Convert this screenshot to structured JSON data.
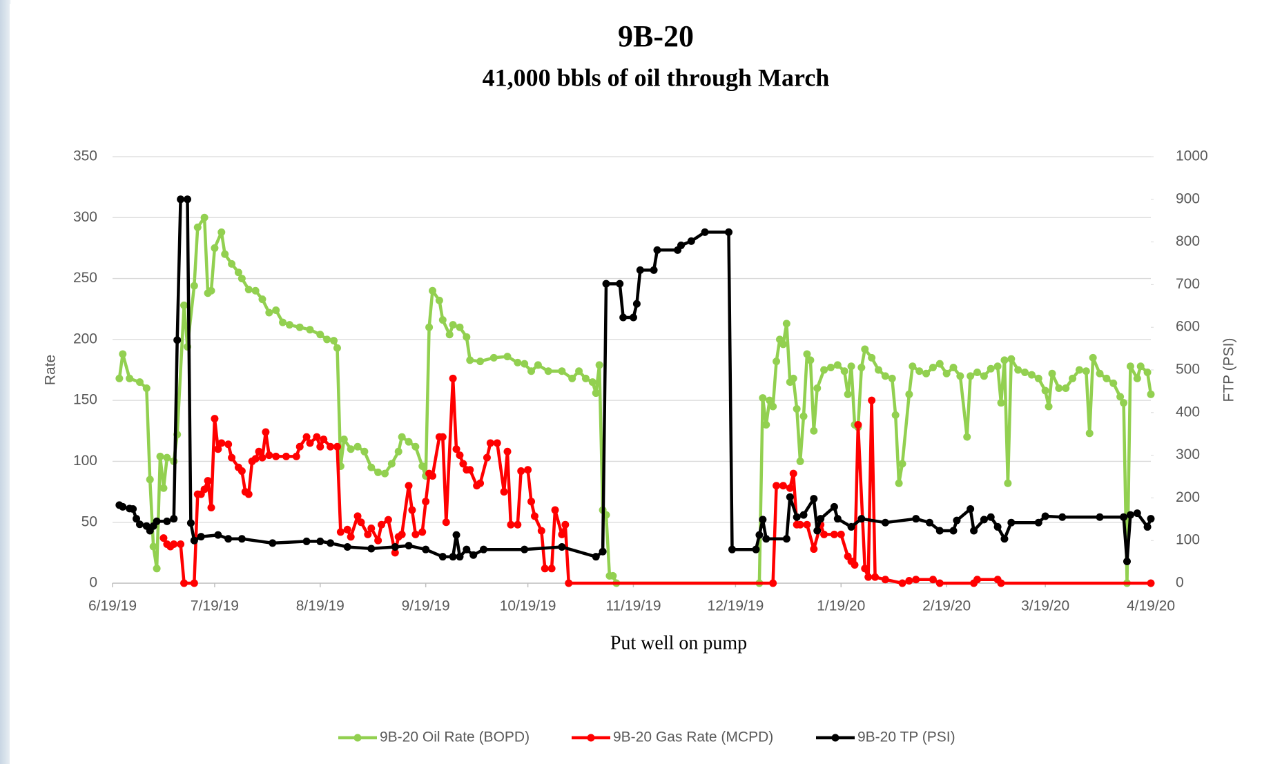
{
  "chart_data": {
    "type": "line",
    "title": "9B-20",
    "subtitle": "41,000 bbls of oil through March",
    "x_label": "Put well on pump",
    "y_label": "Rate",
    "y2_label": "FTP (PSI)",
    "grid": true,
    "legend": "bottom",
    "xlim": [
      "2019-06-19",
      "2020-04-19"
    ],
    "xticks": [
      {
        "value": "2019-06-19",
        "label": "6/19/19"
      },
      {
        "value": "2019-07-19",
        "label": "7/19/19"
      },
      {
        "value": "2019-08-19",
        "label": "8/19/19"
      },
      {
        "value": "2019-09-19",
        "label": "9/19/19"
      },
      {
        "value": "2019-10-19",
        "label": "10/19/19"
      },
      {
        "value": "2019-11-19",
        "label": "11/19/19"
      },
      {
        "value": "2019-12-19",
        "label": "12/19/19"
      },
      {
        "value": "2020-01-19",
        "label": "1/19/20"
      },
      {
        "value": "2020-02-19",
        "label": "2/19/20"
      },
      {
        "value": "2020-03-19",
        "label": "3/19/20"
      },
      {
        "value": "2020-04-19",
        "label": "4/19/20"
      }
    ],
    "ylim": [
      0,
      350
    ],
    "yticks": [
      0,
      50,
      100,
      150,
      200,
      250,
      300,
      350
    ],
    "y2lim": [
      0,
      1000
    ],
    "y2ticks": [
      0,
      100,
      200,
      300,
      400,
      500,
      600,
      700,
      800,
      900,
      1000
    ],
    "series": [
      {
        "name": "9B-20 Oil Rate (BOPD)",
        "color": "#92d050",
        "axis": "y",
        "x": [
          "2019-06-21",
          "2019-06-22",
          "2019-06-24",
          "2019-06-27",
          "2019-06-29",
          "2019-06-30",
          "2019-07-01",
          "2019-07-02",
          "2019-07-03",
          "2019-07-04",
          "2019-07-05",
          "2019-07-07",
          "2019-07-08",
          "2019-07-10",
          "2019-07-11",
          "2019-07-13",
          "2019-07-14",
          "2019-07-16",
          "2019-07-17",
          "2019-07-18",
          "2019-07-19",
          "2019-07-21",
          "2019-07-22",
          "2019-07-24",
          "2019-07-26",
          "2019-07-27",
          "2019-07-29",
          "2019-07-31",
          "2019-08-02",
          "2019-08-04",
          "2019-08-06",
          "2019-08-08",
          "2019-08-10",
          "2019-08-13",
          "2019-08-16",
          "2019-08-19",
          "2019-08-21",
          "2019-08-23",
          "2019-08-24",
          "2019-08-25",
          "2019-08-26",
          "2019-08-28",
          "2019-08-30",
          "2019-09-01",
          "2019-09-03",
          "2019-09-05",
          "2019-09-07",
          "2019-09-09",
          "2019-09-11",
          "2019-09-12",
          "2019-09-14",
          "2019-09-16",
          "2019-09-18",
          "2019-09-19",
          "2019-09-20",
          "2019-09-21",
          "2019-09-23",
          "2019-09-24",
          "2019-09-26",
          "2019-09-27",
          "2019-09-29",
          "2019-10-01",
          "2019-10-02",
          "2019-10-05",
          "2019-10-09",
          "2019-10-13",
          "2019-10-16",
          "2019-10-18",
          "2019-10-20",
          "2019-10-22",
          "2019-10-25",
          "2019-10-29",
          "2019-11-01",
          "2019-11-03",
          "2019-11-05",
          "2019-11-07",
          "2019-11-08",
          "2019-11-09",
          "2019-11-10",
          "2019-11-11",
          "2019-11-12",
          "2019-11-13",
          "2019-11-14",
          "2019-12-26",
          "2019-12-27",
          "2019-12-28",
          "2019-12-29",
          "2019-12-30",
          "2019-12-31",
          "2020-01-01",
          "2020-01-02",
          "2020-01-03",
          "2020-01-04",
          "2020-01-05",
          "2020-01-06",
          "2020-01-07",
          "2020-01-08",
          "2020-01-09",
          "2020-01-10",
          "2020-01-11",
          "2020-01-12",
          "2020-01-14",
          "2020-01-16",
          "2020-01-18",
          "2020-01-20",
          "2020-01-21",
          "2020-01-22",
          "2020-01-23",
          "2020-01-24",
          "2020-01-25",
          "2020-01-26",
          "2020-01-28",
          "2020-01-30",
          "2020-02-01",
          "2020-02-03",
          "2020-02-04",
          "2020-02-05",
          "2020-02-06",
          "2020-02-08",
          "2020-02-09",
          "2020-02-11",
          "2020-02-13",
          "2020-02-15",
          "2020-02-17",
          "2020-02-19",
          "2020-02-21",
          "2020-02-23",
          "2020-02-25",
          "2020-02-26",
          "2020-02-28",
          "2020-03-01",
          "2020-03-03",
          "2020-03-05",
          "2020-03-06",
          "2020-03-07",
          "2020-03-08",
          "2020-03-09",
          "2020-03-11",
          "2020-03-13",
          "2020-03-15",
          "2020-03-17",
          "2020-03-19",
          "2020-03-20",
          "2020-03-21",
          "2020-03-23",
          "2020-03-25",
          "2020-03-27",
          "2020-03-29",
          "2020-03-31",
          "2020-04-01",
          "2020-04-02",
          "2020-04-04",
          "2020-04-06",
          "2020-04-08",
          "2020-04-10",
          "2020-04-11",
          "2020-04-12",
          "2020-04-13",
          "2020-04-15",
          "2020-04-16",
          "2020-04-18",
          "2020-04-19"
        ],
        "values": [
          168,
          188,
          168,
          165,
          160,
          85,
          30,
          12,
          104,
          78,
          103,
          100,
          122,
          228,
          194,
          244,
          292,
          300,
          238,
          240,
          275,
          288,
          270,
          262,
          255,
          250,
          241,
          240,
          233,
          222,
          224,
          214,
          212,
          210,
          208,
          204,
          200,
          199,
          193,
          96,
          118,
          110,
          112,
          108,
          95,
          91,
          90,
          98,
          108,
          120,
          116,
          112,
          96,
          88,
          210,
          240,
          232,
          216,
          204,
          212,
          210,
          202,
          183,
          182,
          185,
          186,
          181,
          180,
          174,
          179,
          174,
          174,
          168,
          174,
          168,
          165,
          156,
          179,
          60,
          56,
          6,
          6,
          0,
          0,
          152,
          130,
          150,
          145,
          182,
          200,
          196,
          213,
          165,
          168,
          143,
          100,
          137,
          188,
          183,
          125,
          160,
          175,
          177,
          179,
          174,
          155,
          178,
          130,
          128,
          177,
          192,
          185,
          175,
          170,
          168,
          138,
          82,
          98,
          155,
          178,
          174,
          172,
          177,
          180,
          172,
          177,
          170,
          120,
          170,
          173,
          170,
          176,
          178,
          148,
          183,
          82,
          184,
          175,
          173,
          171,
          168,
          158,
          145,
          172,
          160,
          160,
          168,
          175,
          174,
          123,
          185,
          172,
          168,
          164,
          153,
          148,
          0,
          178,
          168,
          178,
          173,
          155
        ]
      },
      {
        "name": "9B-20 Gas Rate (MCPD)",
        "color": "#ff0000",
        "axis": "y",
        "x": [
          "2019-07-04",
          "2019-07-05",
          "2019-07-06",
          "2019-07-07",
          "2019-07-09",
          "2019-07-10",
          "2019-07-13",
          "2019-07-14",
          "2019-07-15",
          "2019-07-16",
          "2019-07-17",
          "2019-07-18",
          "2019-07-19",
          "2019-07-20",
          "2019-07-21",
          "2019-07-23",
          "2019-07-24",
          "2019-07-26",
          "2019-07-27",
          "2019-07-28",
          "2019-07-29",
          "2019-07-30",
          "2019-07-31",
          "2019-08-01",
          "2019-08-02",
          "2019-08-03",
          "2019-08-04",
          "2019-08-06",
          "2019-08-09",
          "2019-08-12",
          "2019-08-13",
          "2019-08-15",
          "2019-08-16",
          "2019-08-18",
          "2019-08-19",
          "2019-08-20",
          "2019-08-22",
          "2019-08-24",
          "2019-08-25",
          "2019-08-27",
          "2019-08-28",
          "2019-08-30",
          "2019-08-31",
          "2019-09-02",
          "2019-09-03",
          "2019-09-05",
          "2019-09-06",
          "2019-09-08",
          "2019-09-10",
          "2019-09-11",
          "2019-09-12",
          "2019-09-14",
          "2019-09-15",
          "2019-09-16",
          "2019-09-18",
          "2019-09-19",
          "2019-09-20",
          "2019-09-21",
          "2019-09-23",
          "2019-09-24",
          "2019-09-25",
          "2019-09-27",
          "2019-09-28",
          "2019-09-29",
          "2019-09-30",
          "2019-10-01",
          "2019-10-02",
          "2019-10-04",
          "2019-10-05",
          "2019-10-07",
          "2019-10-08",
          "2019-10-10",
          "2019-10-12",
          "2019-10-13",
          "2019-10-14",
          "2019-10-16",
          "2019-10-17",
          "2019-10-19",
          "2019-10-20",
          "2019-10-21",
          "2019-10-23",
          "2019-10-24",
          "2019-10-26",
          "2019-10-27",
          "2019-10-29",
          "2019-10-30",
          "2019-10-31",
          "2019-12-30",
          "2019-12-31",
          "2020-01-02",
          "2020-01-04",
          "2020-01-05",
          "2020-01-06",
          "2020-01-07",
          "2020-01-09",
          "2020-01-11",
          "2020-01-13",
          "2020-01-14",
          "2020-01-17",
          "2020-01-19",
          "2020-01-21",
          "2020-01-22",
          "2020-01-23",
          "2020-01-24",
          "2020-01-26",
          "2020-01-27",
          "2020-01-28",
          "2020-01-29",
          "2020-02-01",
          "2020-02-06",
          "2020-02-08",
          "2020-02-10",
          "2020-02-15",
          "2020-02-17",
          "2020-02-27",
          "2020-02-28",
          "2020-03-05",
          "2020-03-06",
          "2020-04-19"
        ],
        "values": [
          37,
          32,
          30,
          32,
          32,
          0,
          0,
          73,
          73,
          77,
          84,
          62,
          135,
          110,
          115,
          114,
          103,
          95,
          92,
          75,
          73,
          100,
          102,
          108,
          103,
          124,
          105,
          104,
          104,
          104,
          112,
          120,
          115,
          120,
          112,
          118,
          112,
          112,
          42,
          44,
          38,
          55,
          50,
          40,
          45,
          35,
          48,
          52,
          25,
          38,
          40,
          80,
          60,
          40,
          42,
          67,
          90,
          88,
          120,
          120,
          50,
          168,
          110,
          105,
          98,
          93,
          93,
          80,
          82,
          103,
          115,
          115,
          75,
          108,
          48,
          48,
          92,
          93,
          67,
          55,
          43,
          12,
          12,
          60,
          40,
          48,
          0,
          0,
          80,
          80,
          78,
          90,
          48,
          48,
          48,
          28,
          48,
          40,
          40,
          40,
          22,
          18,
          15,
          130,
          12,
          5,
          150,
          5,
          3,
          0,
          2,
          3,
          3,
          0,
          0,
          3,
          3,
          0,
          0
        ]
      },
      {
        "name": "9B-20 TP (PSI)",
        "color": "#000000",
        "axis": "y2",
        "x": [
          "2019-06-21",
          "2019-06-22",
          "2019-06-24",
          "2019-06-25",
          "2019-06-26",
          "2019-06-27",
          "2019-06-29",
          "2019-06-30",
          "2019-07-01",
          "2019-07-02",
          "2019-07-05",
          "2019-07-07",
          "2019-07-08",
          "2019-07-09",
          "2019-07-11",
          "2019-07-12",
          "2019-07-13",
          "2019-07-15",
          "2019-07-20",
          "2019-07-23",
          "2019-07-27",
          "2019-08-05",
          "2019-08-15",
          "2019-08-19",
          "2019-08-22",
          "2019-08-27",
          "2019-09-03",
          "2019-09-10",
          "2019-09-14",
          "2019-09-19",
          "2019-09-24",
          "2019-09-27",
          "2019-09-28",
          "2019-09-29",
          "2019-10-01",
          "2019-10-03",
          "2019-10-06",
          "2019-10-18",
          "2019-10-29",
          "2019-11-08",
          "2019-11-10",
          "2019-11-11",
          "2019-11-15",
          "2019-11-16",
          "2019-11-19",
          "2019-11-20",
          "2019-11-21",
          "2019-11-25",
          "2019-11-26",
          "2019-12-02",
          "2019-12-03",
          "2019-12-06",
          "2019-12-10",
          "2019-12-17",
          "2019-12-18",
          "2019-12-25",
          "2019-12-26",
          "2019-12-27",
          "2019-12-28",
          "2020-01-03",
          "2020-01-04",
          "2020-01-06",
          "2020-01-08",
          "2020-01-11",
          "2020-01-12",
          "2020-01-13",
          "2020-01-17",
          "2020-01-18",
          "2020-01-22",
          "2020-01-25",
          "2020-02-01",
          "2020-02-10",
          "2020-02-14",
          "2020-02-17",
          "2020-02-21",
          "2020-02-22",
          "2020-02-26",
          "2020-02-27",
          "2020-03-01",
          "2020-03-03",
          "2020-03-05",
          "2020-03-07",
          "2020-03-09",
          "2020-03-17",
          "2020-03-19",
          "2020-03-24",
          "2020-04-04",
          "2020-04-11",
          "2020-04-12",
          "2020-04-13",
          "2020-04-15",
          "2020-04-18",
          "2020-04-19"
        ],
        "values": [
          183,
          179,
          175,
          174,
          151,
          138,
          134,
          123,
          134,
          145,
          145,
          151,
          570,
          900,
          900,
          141,
          100,
          109,
          113,
          104,
          104,
          94,
          98,
          98,
          94,
          85,
          81,
          85,
          88,
          79,
          62,
          62,
          113,
          62,
          79,
          66,
          79,
          79,
          85,
          62,
          74,
          702,
          702,
          623,
          623,
          655,
          734,
          734,
          781,
          781,
          792,
          802,
          823,
          823,
          79,
          79,
          113,
          149,
          104,
          104,
          202,
          155,
          160,
          198,
          123,
          151,
          179,
          151,
          132,
          151,
          142,
          151,
          142,
          123,
          123,
          147,
          174,
          123,
          149,
          155,
          132,
          104,
          142,
          142,
          157,
          155,
          155,
          155,
          51,
          160,
          164,
          132,
          151
        ]
      }
    ]
  }
}
